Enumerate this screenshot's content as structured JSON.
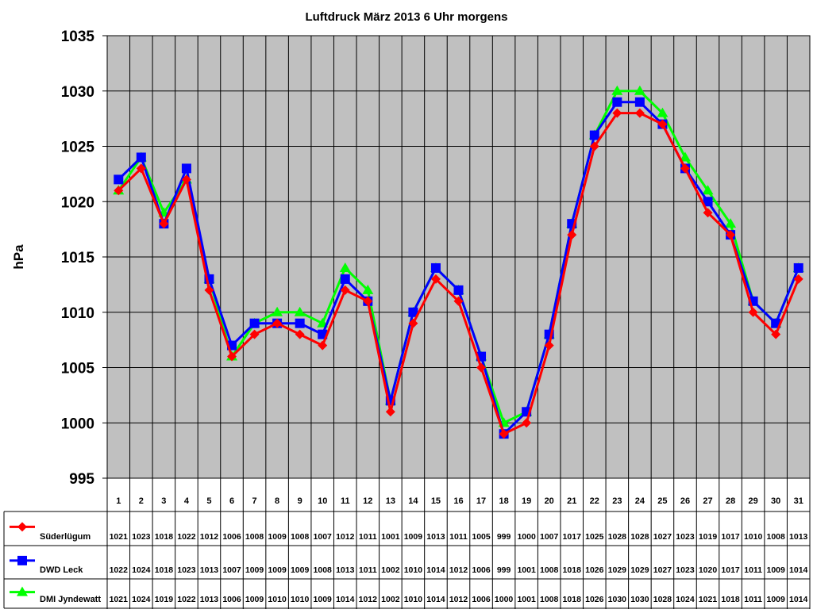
{
  "chart_data": {
    "type": "line",
    "title": "Luftdruck März 2013 6 Uhr morgens",
    "xlabel": "",
    "ylabel": "hPa",
    "ylim": [
      995,
      1035
    ],
    "yticks": [
      995,
      1000,
      1005,
      1010,
      1015,
      1020,
      1025,
      1030,
      1035
    ],
    "grid": true,
    "legend_placement": "data-table-left",
    "categories": [
      "1",
      "2",
      "3",
      "4",
      "5",
      "6",
      "7",
      "8",
      "9",
      "10",
      "11",
      "12",
      "13",
      "14",
      "15",
      "16",
      "17",
      "18",
      "19",
      "20",
      "21",
      "22",
      "23",
      "24",
      "25",
      "26",
      "27",
      "28",
      "29",
      "30",
      "31"
    ],
    "series": [
      {
        "name": "Süderlügum",
        "color": "#ff0000",
        "marker": "diamond",
        "values": [
          1021,
          1023,
          1018,
          1022,
          1012,
          1006,
          1008,
          1009,
          1008,
          1007,
          1012,
          1011,
          1001,
          1009,
          1013,
          1011,
          1005,
          999,
          1000,
          1007,
          1017,
          1025,
          1028,
          1028,
          1027,
          1023,
          1019,
          1017,
          1010,
          1008,
          1013
        ]
      },
      {
        "name": "DWD Leck",
        "color": "#0000ff",
        "marker": "square",
        "values": [
          1022,
          1024,
          1018,
          1023,
          1013,
          1007,
          1009,
          1009,
          1009,
          1008,
          1013,
          1011,
          1002,
          1010,
          1014,
          1012,
          1006,
          999,
          1001,
          1008,
          1018,
          1026,
          1029,
          1029,
          1027,
          1023,
          1020,
          1017,
          1011,
          1009,
          1014
        ]
      },
      {
        "name": "DMI Jyndewatt",
        "color": "#00ff00",
        "marker": "triangle",
        "values": [
          1021,
          1024,
          1019,
          1022,
          1013,
          1006,
          1009,
          1010,
          1010,
          1009,
          1014,
          1012,
          1002,
          1010,
          1014,
          1012,
          1006,
          1000,
          1001,
          1008,
          1018,
          1026,
          1030,
          1030,
          1028,
          1024,
          1021,
          1018,
          1011,
          1009,
          1014
        ]
      }
    ],
    "plot_background": "#c0c0c0"
  }
}
